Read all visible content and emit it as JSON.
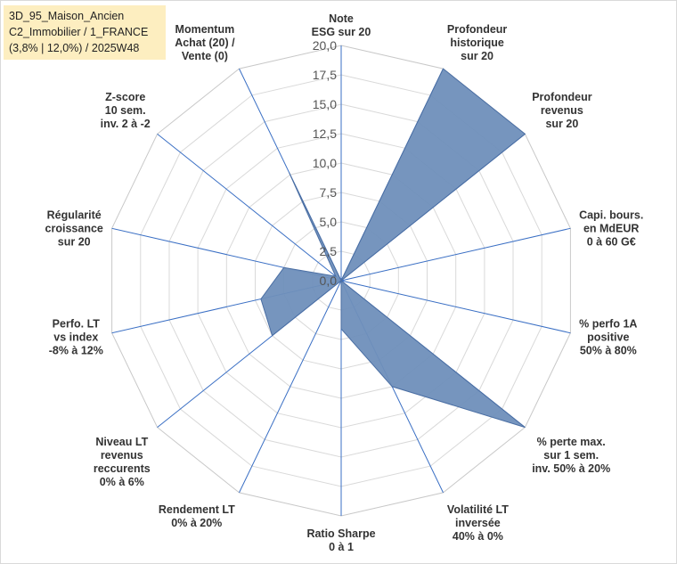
{
  "title_lines": [
    "3D_95_Maison_Ancien",
    "C2_Immobilier / 1_FRANCE",
    "(3,8% | 12,0%) / 2025W48"
  ],
  "chart_data": {
    "type": "radar",
    "rmin": 0,
    "rmax": 20,
    "tick_step": 2.5,
    "ticks": [
      "0,0",
      "2,5",
      "5,0",
      "7,5",
      "10,0",
      "12,5",
      "15,0",
      "17,5",
      "20,0"
    ],
    "grid": true,
    "fill_color": "#6f8fba",
    "edge_color": "#4a6ea3",
    "axes": [
      {
        "label": [
          "Note",
          "ESG sur 20"
        ],
        "value": 0
      },
      {
        "label": [
          "Profondeur",
          "historique",
          "sur 20"
        ],
        "value": 20
      },
      {
        "label": [
          "Profondeur",
          "revenus",
          "sur 20"
        ],
        "value": 20
      },
      {
        "label": [
          "Capi. bours.",
          "en MdEUR",
          "0 à 60 G€"
        ],
        "value": 0
      },
      {
        "label": [
          "% perfo 1A",
          "positive",
          "50% à 80%"
        ],
        "value": 0
      },
      {
        "label": [
          "% perte max.",
          "sur 1 sem.",
          "inv. 50% à 20%"
        ],
        "value": 20
      },
      {
        "label": [
          "Volatilité LT",
          "inversée",
          "40% à 0%"
        ],
        "value": 10
      },
      {
        "label": [
          "Ratio Sharpe",
          "0 à 1"
        ],
        "value": 4.1
      },
      {
        "label": [
          "Rendement LT",
          "0% à 20%"
        ],
        "value": 0
      },
      {
        "label": [
          "Niveau LT",
          "revenus",
          "reccurents",
          "0% à 6%"
        ],
        "value": 7.5
      },
      {
        "label": [
          "Perfo. LT",
          "vs index",
          "-8% à 12%"
        ],
        "value": 7.0
      },
      {
        "label": [
          "Régularité",
          "croissance",
          "sur 20"
        ],
        "value": 5.0
      },
      {
        "label": [
          "Z-score",
          "10 sem.",
          "inv. 2 à -2"
        ],
        "value": 0.6
      },
      {
        "label": [
          "Momentum",
          "Achat (20) /",
          "Vente (0)"
        ],
        "value": 10.2
      }
    ]
  }
}
